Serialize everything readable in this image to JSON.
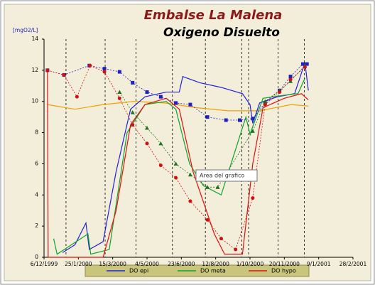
{
  "chart_data": {
    "type": "line",
    "title": "Embalse La Malena",
    "subtitle": "Oxigeno Disuelto",
    "y_label": "[mgO2/L]",
    "tooltip": "Area del grafico",
    "xlim": [
      "1999-12-06",
      "2001-02-28"
    ],
    "xticks": [
      {
        "value": "1999-12-06",
        "label": "6/12/1999"
      },
      {
        "value": "2000-01-25",
        "label": "25/1/2000"
      },
      {
        "value": "2000-03-15",
        "label": "15/3/2000"
      },
      {
        "value": "2000-05-04",
        "label": "4/5/2000"
      },
      {
        "value": "2000-06-23",
        "label": "23/6/2000"
      },
      {
        "value": "2000-08-12",
        "label": "12/8/2000"
      },
      {
        "value": "2000-10-01",
        "label": "1/10/2000"
      },
      {
        "value": "2000-11-20",
        "label": "20/11/2000"
      },
      {
        "value": "2001-01-09",
        "label": "9/1/2001"
      },
      {
        "value": "2001-02-28",
        "label": "28/2/2001"
      }
    ],
    "ylim": [
      0,
      14
    ],
    "yticks": [
      0,
      2,
      4,
      6,
      8,
      10,
      12,
      14
    ],
    "vlines": [
      "2000-01-07",
      "2000-03-04",
      "2000-04-18",
      "2000-06-10",
      "2000-07-28",
      "2000-09-19",
      "2000-09-29",
      "2000-11-11",
      "2000-12-19"
    ],
    "series": [
      {
        "color": "#f0a000",
        "marker": "none",
        "x": [
          "1999-12-11",
          "2000-01-20",
          "2000-03-01",
          "2000-04-15",
          "2000-05-30",
          "2000-07-15",
          "2000-08-30",
          "2000-10-15",
          "2000-11-30",
          "2000-12-25"
        ],
        "values": [
          9.8,
          9.5,
          9.8,
          10.0,
          9.9,
          9.6,
          9.4,
          9.4,
          9.8,
          9.7
        ]
      },
      {
        "name": "DO epi",
        "color": "#2020e0",
        "marker": "none",
        "x": [
          "2000-01-02",
          "2000-01-20",
          "2000-02-05",
          "2000-02-10",
          "2000-03-01",
          "2000-03-20",
          "2000-04-10",
          "2000-05-01",
          "2000-06-01",
          "2000-06-20",
          "2000-06-25",
          "2000-07-20",
          "2000-08-20",
          "2000-09-20",
          "2000-10-01",
          "2000-10-05",
          "2000-10-15",
          "2000-11-10",
          "2000-12-05",
          "2000-12-20",
          "2000-12-25"
        ],
        "values": [
          0.3,
          0.8,
          2.2,
          0.5,
          1.0,
          5.5,
          9.5,
          10.3,
          10.6,
          10.6,
          11.6,
          11.2,
          10.9,
          10.5,
          9.8,
          8.6,
          9.9,
          10.3,
          10.5,
          12.5,
          10.7
        ]
      },
      {
        "name": "DO meta",
        "color": "#10a030",
        "marker": "none",
        "x": [
          "1999-12-20",
          "1999-12-25",
          "2000-02-08",
          "2000-02-12",
          "2000-03-10",
          "2000-04-05",
          "2000-05-01",
          "2000-06-01",
          "2000-06-15",
          "2000-07-05",
          "2000-07-25",
          "2000-08-20",
          "2000-09-25",
          "2000-10-01",
          "2000-10-20",
          "2000-11-20",
          "2000-12-10",
          "2000-12-20"
        ],
        "values": [
          1.2,
          0.2,
          1.5,
          0.2,
          0.5,
          8.0,
          9.8,
          10.0,
          9.5,
          6.0,
          4.6,
          4.0,
          9.0,
          7.9,
          10.2,
          10.4,
          10.5,
          11.5
        ]
      },
      {
        "name": "DO hypo",
        "color": "#e01010",
        "marker": "none",
        "x": [
          "1999-12-11",
          "1999-12-12",
          "2000-03-01",
          "2000-03-20",
          "2000-04-10",
          "2000-05-01",
          "2000-06-01",
          "2000-06-20",
          "2000-07-10",
          "2000-08-10",
          "2000-08-25",
          "2000-09-20",
          "2000-10-05",
          "2000-10-20",
          "2000-11-20",
          "2000-12-15",
          "2000-12-25"
        ],
        "values": [
          12,
          0,
          0,
          3,
          8.5,
          9.8,
          10.2,
          9.5,
          5.5,
          1.5,
          0.2,
          0.2,
          6,
          9.6,
          10.2,
          10.5,
          10.1
        ]
      },
      {
        "color": "#2020c0",
        "marker": "square",
        "x": [
          "1999-12-11",
          "2000-01-04",
          "2000-02-10",
          "2000-03-03",
          "2000-03-25",
          "2000-04-13",
          "2000-05-04",
          "2000-05-24",
          "2000-06-15",
          "2000-07-06",
          "2000-07-31",
          "2000-08-27",
          "2000-09-16",
          "2000-10-05",
          "2000-10-23",
          "2000-11-13",
          "2000-11-29",
          "2000-12-17",
          "2000-12-23"
        ],
        "values": [
          12,
          11.7,
          12.3,
          12.1,
          11.9,
          11.2,
          10.6,
          10.3,
          9.9,
          9.8,
          9.0,
          8.8,
          8.8,
          8.9,
          9.9,
          10.7,
          11.6,
          12.4,
          12.4
        ]
      },
      {
        "color": "#207020",
        "marker": "triangle",
        "x": [
          "2000-03-25",
          "2000-04-13",
          "2000-05-04",
          "2000-05-24",
          "2000-06-15",
          "2000-07-06",
          "2000-07-31",
          "2000-08-15",
          "2000-10-05",
          "2000-10-23",
          "2000-11-13",
          "2000-11-29",
          "2000-12-20"
        ],
        "values": [
          10.6,
          9.3,
          8.3,
          7.3,
          6.0,
          5.3,
          4.5,
          4.5,
          8.1,
          10.0,
          10.7,
          11.3,
          12.3
        ]
      },
      {
        "color": "#d01010",
        "marker": "circle",
        "x": [
          "1999-12-11",
          "2000-01-04",
          "2000-01-23",
          "2000-02-11",
          "2000-03-03",
          "2000-03-25",
          "2000-04-13",
          "2000-05-04",
          "2000-05-24",
          "2000-06-15",
          "2000-07-06",
          "2000-07-31",
          "2000-08-20",
          "2000-09-10",
          "2000-10-05",
          "2000-10-23",
          "2000-11-13",
          "2000-11-29",
          "2000-12-20"
        ],
        "values": [
          12,
          11.7,
          10.3,
          12.3,
          11.9,
          10.2,
          8.5,
          7.3,
          5.9,
          5.1,
          3.6,
          2.4,
          1.2,
          0.5,
          3.8,
          9.8,
          10.6,
          11.4,
          12.2
        ]
      }
    ]
  }
}
